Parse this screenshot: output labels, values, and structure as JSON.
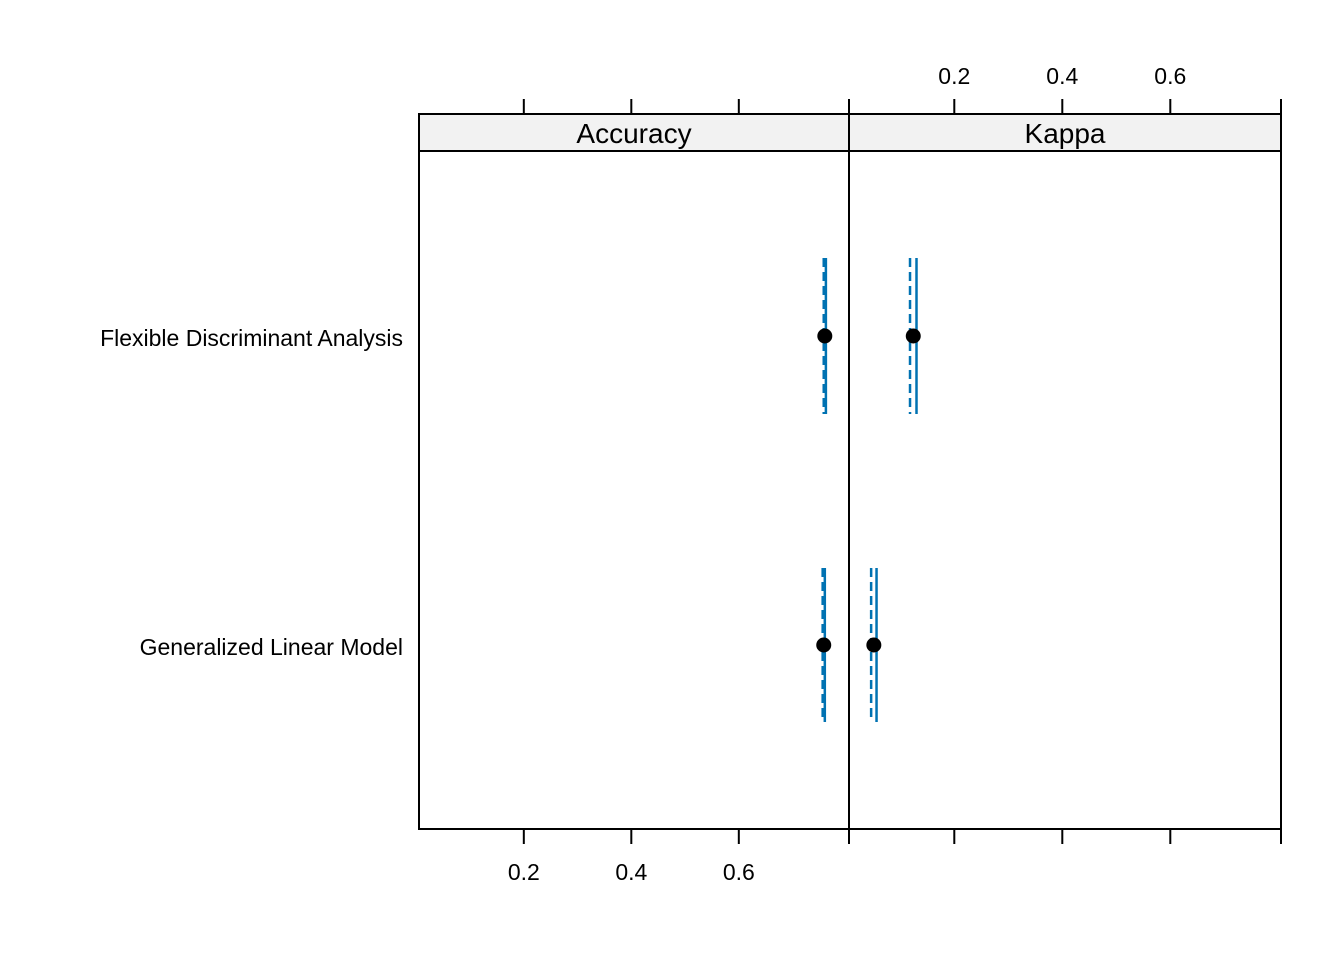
{
  "chart_data": {
    "type": "scatter",
    "panels": [
      {
        "name": "Accuracy",
        "models": [
          {
            "label": "Flexible Discriminant Analysis",
            "estimate": 0.76,
            "lower": 0.758,
            "upper": 0.762
          },
          {
            "label": "Generalized Linear Model",
            "estimate": 0.758,
            "lower": 0.756,
            "upper": 0.76
          }
        ]
      },
      {
        "name": "Kappa",
        "models": [
          {
            "label": "Flexible Discriminant Analysis",
            "estimate": 0.124,
            "lower": 0.118,
            "upper": 0.13
          },
          {
            "label": "Generalized Linear Model",
            "estimate": 0.051,
            "lower": 0.046,
            "upper": 0.056
          }
        ]
      }
    ],
    "categories": [
      "Flexible Discriminant Analysis",
      "Generalized Linear Model"
    ],
    "xlim": [
      0.005,
      0.805
    ],
    "ticks": [
      0.2,
      0.4,
      0.6
    ],
    "tick_labels": [
      "0.2",
      "0.4",
      "0.6"
    ],
    "colors": {
      "interval": "#0072B2",
      "point": "#000000",
      "strip": "#F2F2F2",
      "frame": "#000000"
    },
    "grid": false,
    "legend": "none"
  }
}
